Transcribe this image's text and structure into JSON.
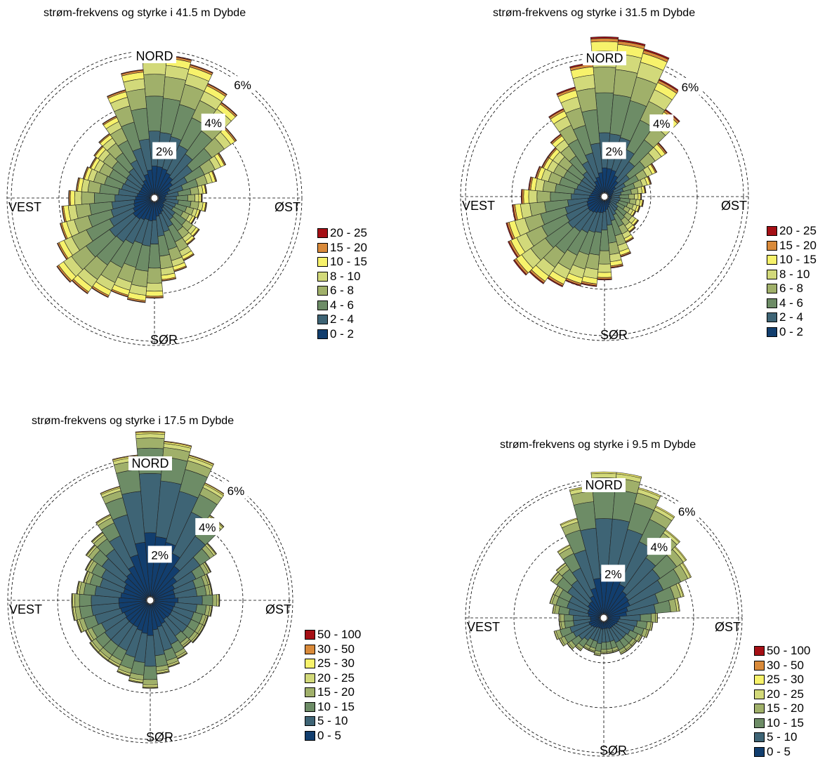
{
  "panels": [
    {
      "title": "strøm-frekvens og styrke i 41.5 m Dybde",
      "directions": {
        "north": "NORD",
        "east": "ØST",
        "south": "SØR",
        "west": "VEST"
      },
      "ring_labels": [
        "2%",
        "4%",
        "6%"
      ],
      "legend": [
        "20 - 25",
        "15 - 20",
        "10 - 15",
        "8 - 10",
        "6 - 8",
        "4 - 6",
        "2 - 4",
        "0 - 2"
      ]
    },
    {
      "title": "strøm-frekvens og styrke i 31.5 m Dybde",
      "directions": {
        "north": "NORD",
        "east": "ØST",
        "south": "SØR",
        "west": "VEST"
      },
      "ring_labels": [
        "2%",
        "4%",
        "6%"
      ],
      "legend": [
        "20 - 25",
        "15 - 20",
        "10 - 15",
        "8 - 10",
        "6 - 8",
        "4 - 6",
        "2 - 4",
        "0 - 2"
      ]
    },
    {
      "title": "strøm-frekvens og styrke i 17.5 m Dybde",
      "directions": {
        "north": "NORD",
        "east": "ØST",
        "south": "SØR",
        "west": "VEST"
      },
      "ring_labels": [
        "2%",
        "4%",
        "6%"
      ],
      "legend": [
        "50 - 100",
        "30 - 50",
        "25 - 30",
        "20 - 25",
        "15 - 20",
        "10 - 15",
        "5 - 10",
        "0 - 5"
      ]
    },
    {
      "title": "strøm-frekvens og styrke i 9.5 m Dybde",
      "directions": {
        "north": "NORD",
        "east": "ØST",
        "south": "SØR",
        "west": "VEST"
      },
      "ring_labels": [
        "2%",
        "4%",
        "6%"
      ],
      "legend": [
        "50 - 100",
        "30 - 50",
        "25 - 30",
        "20 - 25",
        "15 - 20",
        "10 - 15",
        "5 - 10",
        "0 - 5"
      ]
    }
  ],
  "colors": {
    "bins": [
      "#a50f15",
      "#d98a3a",
      "#f7f26b",
      "#d2d97a",
      "#a0b06a",
      "#6d8c66",
      "#3e6475",
      "#123e6e"
    ],
    "grid": "#000000"
  },
  "chart_data": [
    {
      "type": "rose",
      "title": "strøm-frekvens og styrke i 41.5 m Dybde",
      "sectors_deg_step": 10,
      "rings_percent": [
        2,
        4,
        6
      ],
      "bins": [
        "0 - 2",
        "2 - 4",
        "4 - 6",
        "6 - 8",
        "8 - 10",
        "10 - 15",
        "15 - 20",
        "20 - 25"
      ],
      "totals_percent": [
        6.1,
        6.0,
        5.8,
        5.3,
        4.9,
        4.2,
        3.3,
        2.7,
        2.2,
        2.0,
        2.2,
        2.0,
        1.9,
        2.3,
        2.4,
        2.9,
        3.2,
        3.5,
        4.2,
        4.4,
        4.3,
        4.6,
        4.9,
        5.0,
        4.5,
        4.1,
        3.9,
        3.6,
        3.3,
        3.1,
        3.0,
        3.1,
        3.3,
        3.8,
        4.7,
        5.4
      ],
      "bin_fractions": [
        0.22,
        0.24,
        0.24,
        0.15,
        0.08,
        0.05,
        0.015,
        0.005
      ]
    },
    {
      "type": "rose",
      "title": "strøm-frekvens og styrke i 31.5 m Dybde",
      "sectors_deg_step": 10,
      "rings_percent": [
        2,
        4,
        6
      ],
      "bins": [
        "0 - 2",
        "2 - 4",
        "4 - 6",
        "6 - 8",
        "8 - 10",
        "10 - 15",
        "15 - 20",
        "20 - 25"
      ],
      "totals_percent": [
        6.9,
        6.8,
        6.6,
        5.6,
        4.6,
        3.3,
        2.5,
        2.1,
        1.8,
        1.6,
        1.7,
        1.6,
        1.5,
        1.8,
        1.9,
        2.2,
        2.7,
        3.1,
        3.6,
        3.9,
        4.0,
        4.3,
        4.6,
        4.8,
        4.6,
        4.4,
        4.0,
        3.6,
        3.3,
        3.1,
        3.0,
        3.0,
        3.3,
        4.2,
        4.9,
        5.8
      ],
      "bin_fractions": [
        0.18,
        0.22,
        0.25,
        0.16,
        0.1,
        0.06,
        0.02,
        0.01
      ]
    },
    {
      "type": "rose",
      "title": "strøm-frekvens og styrke i 17.5 m Dybde",
      "sectors_deg_step": 10,
      "rings_percent": [
        2,
        4,
        6
      ],
      "bins": [
        "0 - 5",
        "5 - 10",
        "10 - 15",
        "15 - 20",
        "20 - 25",
        "25 - 30",
        "30 - 50",
        "50 - 100"
      ],
      "totals_percent": [
        7.3,
        6.9,
        6.5,
        5.6,
        4.5,
        3.5,
        2.9,
        2.7,
        2.7,
        3.0,
        2.7,
        2.6,
        2.6,
        2.6,
        2.5,
        2.8,
        3.0,
        3.2,
        3.8,
        3.6,
        3.4,
        3.2,
        3.2,
        3.2,
        3.1,
        3.3,
        3.4,
        3.4,
        3.2,
        3.0,
        3.1,
        3.4,
        3.6,
        4.1,
        5.1,
        6.3
      ],
      "bin_fractions": [
        0.4,
        0.35,
        0.15,
        0.06,
        0.025,
        0.01,
        0.005,
        0.0
      ]
    },
    {
      "type": "rose",
      "title": "strøm-frekvens og styrke i 9.5 m Dybde",
      "sectors_deg_step": 10,
      "rings_percent": [
        2,
        4,
        6
      ],
      "bins": [
        "0 - 5",
        "5 - 10",
        "10 - 15",
        "15 - 20",
        "20 - 25",
        "25 - 30",
        "30 - 50",
        "50 - 100"
      ],
      "totals_percent": [
        6.5,
        6.5,
        6.0,
        5.5,
        4.8,
        4.5,
        4.3,
        3.7,
        3.4,
        2.4,
        2.2,
        2.1,
        1.9,
        1.8,
        1.8,
        1.8,
        1.6,
        1.6,
        1.6,
        1.7,
        1.6,
        1.6,
        1.8,
        2.0,
        2.2,
        2.3,
        2.0,
        2.0,
        2.3,
        2.5,
        2.5,
        2.9,
        3.0,
        3.6,
        4.6,
        5.9
      ],
      "bin_fractions": [
        0.3,
        0.38,
        0.2,
        0.08,
        0.03,
        0.01,
        0.0,
        0.0
      ]
    }
  ]
}
